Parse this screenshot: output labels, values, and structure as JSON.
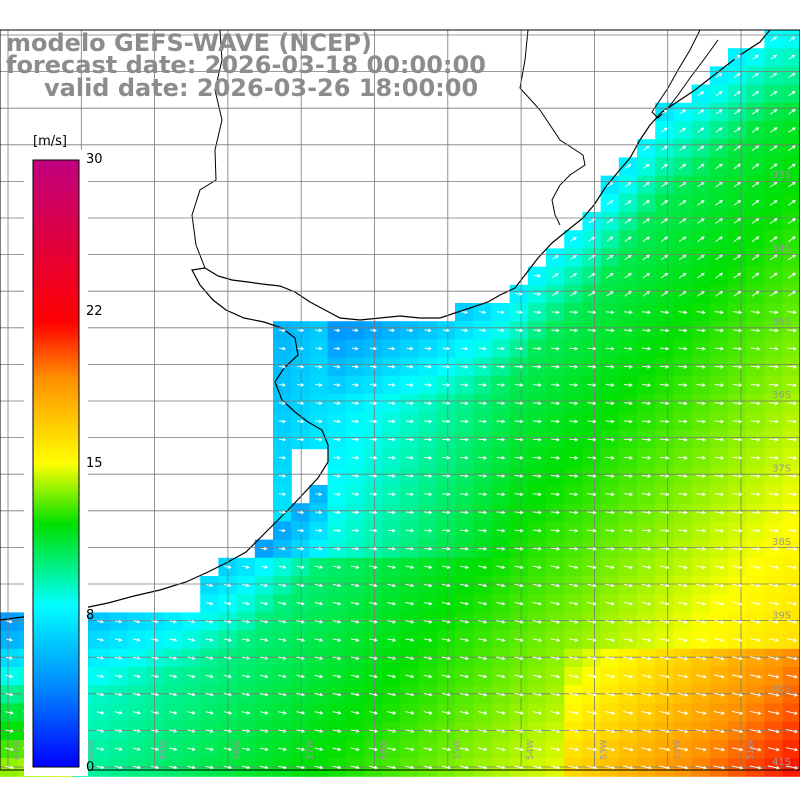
{
  "title": {
    "line1": "modelo GEFS-WAVE (NCEP)",
    "line2": "forecast date: 2026-03-18 00:00:00",
    "line3": "valid date: 2026-03-26 18:00:00"
  },
  "colorbar": {
    "unit": "[m/s]",
    "min": 0,
    "max": 30,
    "ticks": [
      {
        "value": 30,
        "label": "30"
      },
      {
        "value": 22,
        "label": "22"
      },
      {
        "value": 15,
        "label": "15"
      },
      {
        "value": 8,
        "label": "8"
      },
      {
        "value": 0,
        "label": "0"
      }
    ],
    "colors": [
      "#0000ff",
      "#00a8ff",
      "#00ffff",
      "#00ff00",
      "#ffff00",
      "#ff8000",
      "#ff0000",
      "#c00080"
    ]
  },
  "map": {
    "lat_labels": [
      "33S",
      "34S",
      "35S",
      "36S",
      "37S",
      "38S",
      "39S",
      "40S",
      "41S"
    ],
    "lon_labels": [
      "61W",
      "60W",
      "59W",
      "58W",
      "57W",
      "56W",
      "55W",
      "54W",
      "53W",
      "52W",
      "51W"
    ],
    "field": "wind speed with direction arrows"
  }
}
